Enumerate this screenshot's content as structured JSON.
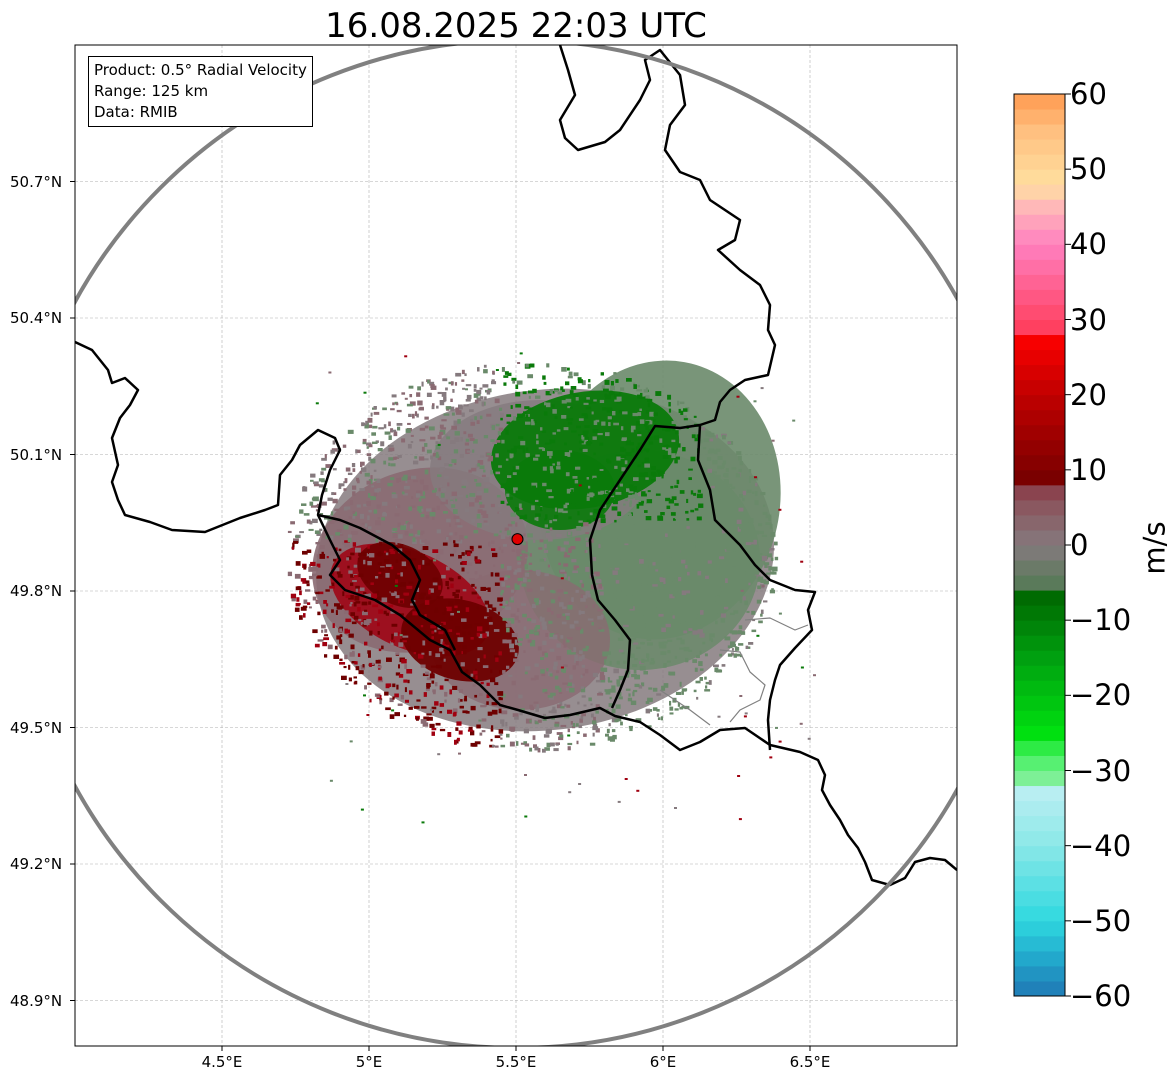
{
  "title": "16.08.2025 22:03 UTC",
  "info_box": {
    "product": "Product: 0.5° Radial Velocity",
    "range": "Range: 125 km",
    "data": "Data: RMIB"
  },
  "map": {
    "lon_range": [
      4.0,
      7.0
    ],
    "lat_range": [
      48.8,
      51.0
    ],
    "lon_ticks": [
      "4.5°E",
      "5°E",
      "5.5°E",
      "6°E",
      "6.5°E"
    ],
    "lon_tick_values": [
      4.5,
      5.0,
      5.5,
      6.0,
      6.5
    ],
    "lat_ticks": [
      "50.7°N",
      "50.4°N",
      "50.1°N",
      "49.8°N",
      "49.5°N",
      "49.2°N",
      "48.9°N"
    ],
    "lat_tick_values": [
      50.7,
      50.4,
      50.1,
      49.8,
      49.5,
      49.2,
      48.9
    ],
    "grid": true,
    "radar_site": {
      "lon": 5.505,
      "lat": 49.914
    },
    "range_ring_km": 125,
    "colors": {
      "border": "#000000",
      "ring": "#808080",
      "site_marker": "#e00000",
      "receding_core": "#6e0000",
      "receding_mid": "#a00010",
      "receding_light": "#8a6a72",
      "near_zero": "#857a7e",
      "approaching_light": "#6a8a6a",
      "approaching_core": "#0a7a0a"
    }
  },
  "colorbar": {
    "label": "m/s",
    "min": -60,
    "max": 60,
    "ticks": [
      "60",
      "50",
      "40",
      "30",
      "20",
      "10",
      "0",
      "−10",
      "−20",
      "−30",
      "−40",
      "−50",
      "−60"
    ],
    "tick_values": [
      60,
      50,
      40,
      30,
      20,
      10,
      0,
      -10,
      -20,
      -30,
      -40,
      -50,
      -60
    ],
    "color_stops": [
      {
        "v": -60,
        "c": "#1f77b4"
      },
      {
        "v": -55,
        "c": "#22a8cc"
      },
      {
        "v": -50,
        "c": "#2ed8df"
      },
      {
        "v": -40,
        "c": "#8ae8e8"
      },
      {
        "v": -33,
        "c": "#b8eef2"
      },
      {
        "v": -32,
        "c": "#90f0a8"
      },
      {
        "v": -28,
        "c": "#44f060"
      },
      {
        "v": -25,
        "c": "#00e010"
      },
      {
        "v": -15,
        "c": "#00a010"
      },
      {
        "v": -6,
        "c": "#006400"
      },
      {
        "v": -5,
        "c": "#5a7a5a"
      },
      {
        "v": 0,
        "c": "#857a7e"
      },
      {
        "v": 5,
        "c": "#8a5860"
      },
      {
        "v": 8,
        "c": "#8a3a46"
      },
      {
        "v": 9,
        "c": "#7a0000"
      },
      {
        "v": 20,
        "c": "#c00000"
      },
      {
        "v": 28,
        "c": "#ff0000"
      },
      {
        "v": 29,
        "c": "#ff4060"
      },
      {
        "v": 40,
        "c": "#ff80c0"
      },
      {
        "v": 45,
        "c": "#ffb8b8"
      },
      {
        "v": 48,
        "c": "#ffe0a0"
      },
      {
        "v": 55,
        "c": "#ffc080"
      },
      {
        "v": 60,
        "c": "#ff9a50"
      }
    ]
  }
}
